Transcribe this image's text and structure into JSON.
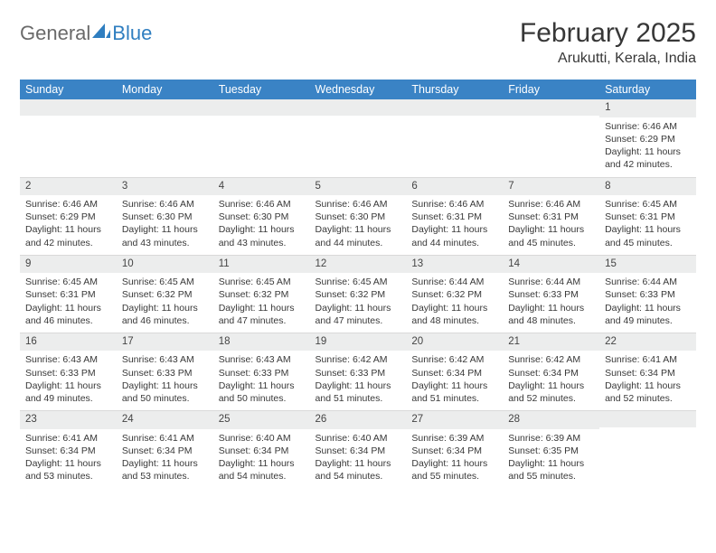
{
  "logo": {
    "word1": "General",
    "word2": "Blue"
  },
  "title": "February 2025",
  "location": "Arukutti, Kerala, India",
  "colors": {
    "header_bg": "#3a83c5",
    "header_text": "#ffffff",
    "daynum_bg": "#eceded",
    "body_text": "#383838",
    "logo_blue": "#2f7ec0",
    "logo_gray": "#6a6a6a",
    "rule": "#d9d9d9",
    "page_bg": "#ffffff"
  },
  "weekdays": [
    "Sunday",
    "Monday",
    "Tuesday",
    "Wednesday",
    "Thursday",
    "Friday",
    "Saturday"
  ],
  "weeks": [
    [
      null,
      null,
      null,
      null,
      null,
      null,
      {
        "d": "1",
        "sr": "Sunrise: 6:46 AM",
        "ss": "Sunset: 6:29 PM",
        "dl": "Daylight: 11 hours and 42 minutes."
      }
    ],
    [
      {
        "d": "2",
        "sr": "Sunrise: 6:46 AM",
        "ss": "Sunset: 6:29 PM",
        "dl": "Daylight: 11 hours and 42 minutes."
      },
      {
        "d": "3",
        "sr": "Sunrise: 6:46 AM",
        "ss": "Sunset: 6:30 PM",
        "dl": "Daylight: 11 hours and 43 minutes."
      },
      {
        "d": "4",
        "sr": "Sunrise: 6:46 AM",
        "ss": "Sunset: 6:30 PM",
        "dl": "Daylight: 11 hours and 43 minutes."
      },
      {
        "d": "5",
        "sr": "Sunrise: 6:46 AM",
        "ss": "Sunset: 6:30 PM",
        "dl": "Daylight: 11 hours and 44 minutes."
      },
      {
        "d": "6",
        "sr": "Sunrise: 6:46 AM",
        "ss": "Sunset: 6:31 PM",
        "dl": "Daylight: 11 hours and 44 minutes."
      },
      {
        "d": "7",
        "sr": "Sunrise: 6:46 AM",
        "ss": "Sunset: 6:31 PM",
        "dl": "Daylight: 11 hours and 45 minutes."
      },
      {
        "d": "8",
        "sr": "Sunrise: 6:45 AM",
        "ss": "Sunset: 6:31 PM",
        "dl": "Daylight: 11 hours and 45 minutes."
      }
    ],
    [
      {
        "d": "9",
        "sr": "Sunrise: 6:45 AM",
        "ss": "Sunset: 6:31 PM",
        "dl": "Daylight: 11 hours and 46 minutes."
      },
      {
        "d": "10",
        "sr": "Sunrise: 6:45 AM",
        "ss": "Sunset: 6:32 PM",
        "dl": "Daylight: 11 hours and 46 minutes."
      },
      {
        "d": "11",
        "sr": "Sunrise: 6:45 AM",
        "ss": "Sunset: 6:32 PM",
        "dl": "Daylight: 11 hours and 47 minutes."
      },
      {
        "d": "12",
        "sr": "Sunrise: 6:45 AM",
        "ss": "Sunset: 6:32 PM",
        "dl": "Daylight: 11 hours and 47 minutes."
      },
      {
        "d": "13",
        "sr": "Sunrise: 6:44 AM",
        "ss": "Sunset: 6:32 PM",
        "dl": "Daylight: 11 hours and 48 minutes."
      },
      {
        "d": "14",
        "sr": "Sunrise: 6:44 AM",
        "ss": "Sunset: 6:33 PM",
        "dl": "Daylight: 11 hours and 48 minutes."
      },
      {
        "d": "15",
        "sr": "Sunrise: 6:44 AM",
        "ss": "Sunset: 6:33 PM",
        "dl": "Daylight: 11 hours and 49 minutes."
      }
    ],
    [
      {
        "d": "16",
        "sr": "Sunrise: 6:43 AM",
        "ss": "Sunset: 6:33 PM",
        "dl": "Daylight: 11 hours and 49 minutes."
      },
      {
        "d": "17",
        "sr": "Sunrise: 6:43 AM",
        "ss": "Sunset: 6:33 PM",
        "dl": "Daylight: 11 hours and 50 minutes."
      },
      {
        "d": "18",
        "sr": "Sunrise: 6:43 AM",
        "ss": "Sunset: 6:33 PM",
        "dl": "Daylight: 11 hours and 50 minutes."
      },
      {
        "d": "19",
        "sr": "Sunrise: 6:42 AM",
        "ss": "Sunset: 6:33 PM",
        "dl": "Daylight: 11 hours and 51 minutes."
      },
      {
        "d": "20",
        "sr": "Sunrise: 6:42 AM",
        "ss": "Sunset: 6:34 PM",
        "dl": "Daylight: 11 hours and 51 minutes."
      },
      {
        "d": "21",
        "sr": "Sunrise: 6:42 AM",
        "ss": "Sunset: 6:34 PM",
        "dl": "Daylight: 11 hours and 52 minutes."
      },
      {
        "d": "22",
        "sr": "Sunrise: 6:41 AM",
        "ss": "Sunset: 6:34 PM",
        "dl": "Daylight: 11 hours and 52 minutes."
      }
    ],
    [
      {
        "d": "23",
        "sr": "Sunrise: 6:41 AM",
        "ss": "Sunset: 6:34 PM",
        "dl": "Daylight: 11 hours and 53 minutes."
      },
      {
        "d": "24",
        "sr": "Sunrise: 6:41 AM",
        "ss": "Sunset: 6:34 PM",
        "dl": "Daylight: 11 hours and 53 minutes."
      },
      {
        "d": "25",
        "sr": "Sunrise: 6:40 AM",
        "ss": "Sunset: 6:34 PM",
        "dl": "Daylight: 11 hours and 54 minutes."
      },
      {
        "d": "26",
        "sr": "Sunrise: 6:40 AM",
        "ss": "Sunset: 6:34 PM",
        "dl": "Daylight: 11 hours and 54 minutes."
      },
      {
        "d": "27",
        "sr": "Sunrise: 6:39 AM",
        "ss": "Sunset: 6:34 PM",
        "dl": "Daylight: 11 hours and 55 minutes."
      },
      {
        "d": "28",
        "sr": "Sunrise: 6:39 AM",
        "ss": "Sunset: 6:35 PM",
        "dl": "Daylight: 11 hours and 55 minutes."
      },
      null
    ]
  ]
}
